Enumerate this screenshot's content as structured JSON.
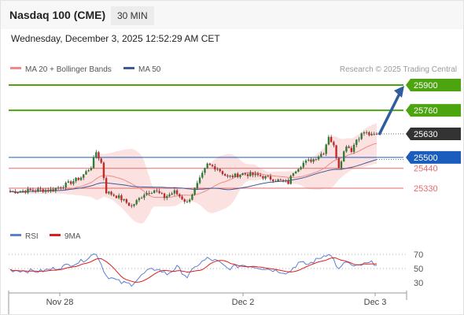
{
  "header": {
    "title": "Nasdaq 100 (CME)",
    "timeframe": "30 MIN",
    "datetime": "Wednesday, December 3, 2025 12:52:29 AM CET"
  },
  "colors": {
    "target_green": "#4ca40f",
    "pivot_blue": "#1a5dbd",
    "support_red": "#e56b6b",
    "bollinger_fill": "#fbdcdc",
    "ma20": "#f08a8a",
    "ma50": "#3d5a99",
    "rsi": "#5b7fd3",
    "rsi_ma": "#e01c1c",
    "arrow": "#2f5d9e",
    "last_price_tag": "#333333"
  },
  "chart_data": [
    {
      "type": "candlestick",
      "legend": [
        {
          "name": "MA 20 + Bollinger Bands",
          "color": "#f08a8a"
        },
        {
          "name": "MA 50",
          "color": "#3d5a99"
        }
      ],
      "watermark": "Research © 2025 Trading Central",
      "x_ticks": [
        "Nov 28",
        "Dec 2",
        "Dec 3"
      ],
      "ylim": [
        25200,
        25930
      ],
      "last_price": 25630,
      "levels": [
        {
          "value": 25900,
          "label": "25900",
          "role": "target",
          "color": "#4ca40f"
        },
        {
          "value": 25760,
          "label": "25760",
          "role": "target",
          "color": "#4ca40f"
        },
        {
          "value": 25500,
          "label": "25500",
          "role": "pivot",
          "color": "#1a5dbd"
        },
        {
          "value": 25440,
          "label": "25440",
          "role": "support",
          "color": "#e56b6b"
        },
        {
          "value": 25330,
          "label": "25330",
          "role": "support",
          "color": "#e56b6b"
        }
      ],
      "price_tag": {
        "value": 25630,
        "label": "25630"
      },
      "projection": {
        "from": 25625,
        "to": 25900
      },
      "anchors": [
        {
          "i": 0,
          "p": 25310
        },
        {
          "i": 10,
          "p": 25320
        },
        {
          "i": 16,
          "p": 25320
        },
        {
          "i": 22,
          "p": 25350
        },
        {
          "i": 28,
          "p": 25390
        },
        {
          "i": 32,
          "p": 25450
        },
        {
          "i": 34,
          "p": 25530
        },
        {
          "i": 36,
          "p": 25470
        },
        {
          "i": 38,
          "p": 25310
        },
        {
          "i": 43,
          "p": 25280
        },
        {
          "i": 48,
          "p": 25230
        },
        {
          "i": 53,
          "p": 25300
        },
        {
          "i": 57,
          "p": 25320
        },
        {
          "i": 61,
          "p": 25280
        },
        {
          "i": 65,
          "p": 25310
        },
        {
          "i": 70,
          "p": 25250
        },
        {
          "i": 74,
          "p": 25350
        },
        {
          "i": 78,
          "p": 25460
        },
        {
          "i": 82,
          "p": 25440
        },
        {
          "i": 86,
          "p": 25390
        },
        {
          "i": 92,
          "p": 25410
        },
        {
          "i": 98,
          "p": 25400
        },
        {
          "i": 104,
          "p": 25380
        },
        {
          "i": 110,
          "p": 25360
        },
        {
          "i": 112,
          "p": 25420
        },
        {
          "i": 116,
          "p": 25470
        },
        {
          "i": 120,
          "p": 25490
        },
        {
          "i": 124,
          "p": 25530
        },
        {
          "i": 126,
          "p": 25620
        },
        {
          "i": 128,
          "p": 25560
        },
        {
          "i": 130,
          "p": 25450
        },
        {
          "i": 131,
          "p": 25490
        },
        {
          "i": 133,
          "p": 25570
        },
        {
          "i": 135,
          "p": 25540
        },
        {
          "i": 137,
          "p": 25600
        },
        {
          "i": 140,
          "p": 25640
        },
        {
          "i": 143,
          "p": 25620
        },
        {
          "i": 145,
          "p": 25630
        }
      ]
    },
    {
      "type": "line",
      "legend": [
        {
          "name": "RSI",
          "color": "#5b7fd3"
        },
        {
          "name": "9MA",
          "color": "#e01c1c"
        }
      ],
      "y_ticks": [
        70,
        50,
        30
      ],
      "ylim": [
        20,
        80
      ],
      "x_ticks": [
        "Nov 28",
        "Dec 2",
        "Dec 3"
      ],
      "rsi_anchors": [
        {
          "i": 0,
          "v": 48
        },
        {
          "i": 12,
          "v": 46
        },
        {
          "i": 20,
          "v": 52
        },
        {
          "i": 28,
          "v": 60
        },
        {
          "i": 34,
          "v": 72
        },
        {
          "i": 38,
          "v": 40
        },
        {
          "i": 44,
          "v": 30
        },
        {
          "i": 48,
          "v": 28
        },
        {
          "i": 54,
          "v": 46
        },
        {
          "i": 58,
          "v": 50
        },
        {
          "i": 62,
          "v": 42
        },
        {
          "i": 66,
          "v": 52
        },
        {
          "i": 70,
          "v": 38
        },
        {
          "i": 74,
          "v": 55
        },
        {
          "i": 78,
          "v": 64
        },
        {
          "i": 82,
          "v": 60
        },
        {
          "i": 86,
          "v": 50
        },
        {
          "i": 92,
          "v": 55
        },
        {
          "i": 98,
          "v": 52
        },
        {
          "i": 104,
          "v": 48
        },
        {
          "i": 110,
          "v": 44
        },
        {
          "i": 114,
          "v": 58
        },
        {
          "i": 118,
          "v": 56
        },
        {
          "i": 122,
          "v": 64
        },
        {
          "i": 126,
          "v": 72
        },
        {
          "i": 128,
          "v": 62
        },
        {
          "i": 130,
          "v": 48
        },
        {
          "i": 133,
          "v": 60
        },
        {
          "i": 136,
          "v": 52
        },
        {
          "i": 140,
          "v": 56
        },
        {
          "i": 143,
          "v": 58
        },
        {
          "i": 145,
          "v": 57
        }
      ]
    }
  ]
}
